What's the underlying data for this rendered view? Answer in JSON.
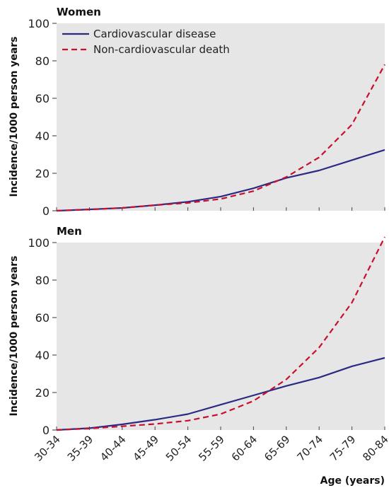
{
  "chart_data": [
    {
      "type": "line",
      "title": "Women",
      "xlabel": "",
      "ylabel": "Incidence/1000 person years",
      "ylim": [
        0,
        100
      ],
      "yticks": [
        0,
        20,
        40,
        60,
        80,
        100
      ],
      "categories": [
        "30-34",
        "35-39",
        "40-44",
        "45-49",
        "50-54",
        "55-59",
        "60-64",
        "65-69",
        "70-74",
        "75-79",
        "80-84"
      ],
      "grid": false,
      "legend": "top-left",
      "series": [
        {
          "name": "Cardiovascular disease",
          "color": "#2b2a83",
          "dash": "solid",
          "values": [
            0.0,
            0.7,
            1.5,
            3.0,
            4.8,
            7.6,
            12.0,
            17.5,
            21.5,
            27.0,
            32.5
          ]
        },
        {
          "name": "Non-cardiovascular death",
          "color": "#c8102e",
          "dash": "dashed",
          "values": [
            0.0,
            0.7,
            1.5,
            3.0,
            4.2,
            6.3,
            10.5,
            18.0,
            28.5,
            46.0,
            78.0
          ]
        }
      ]
    },
    {
      "type": "line",
      "title": "Men",
      "xlabel": "Age (years)",
      "ylabel": "Incidence/1000 person years",
      "ylim": [
        0,
        100
      ],
      "yticks": [
        0,
        20,
        40,
        60,
        80,
        100
      ],
      "categories": [
        "30-34",
        "35-39",
        "40-44",
        "45-49",
        "50-54",
        "55-59",
        "60-64",
        "65-69",
        "70-74",
        "75-79",
        "80-84"
      ],
      "grid": false,
      "legend": "",
      "series": [
        {
          "name": "Cardiovascular disease",
          "color": "#2b2a83",
          "dash": "solid",
          "values": [
            0.0,
            1.0,
            3.0,
            5.5,
            8.5,
            13.5,
            18.5,
            23.5,
            28.0,
            34.0,
            38.5
          ]
        },
        {
          "name": "Non-cardiovascular death",
          "color": "#c8102e",
          "dash": "dashed",
          "values": [
            0.0,
            0.8,
            2.0,
            3.2,
            5.0,
            8.5,
            15.5,
            27.0,
            44.0,
            68.0,
            103.0
          ]
        }
      ]
    }
  ]
}
